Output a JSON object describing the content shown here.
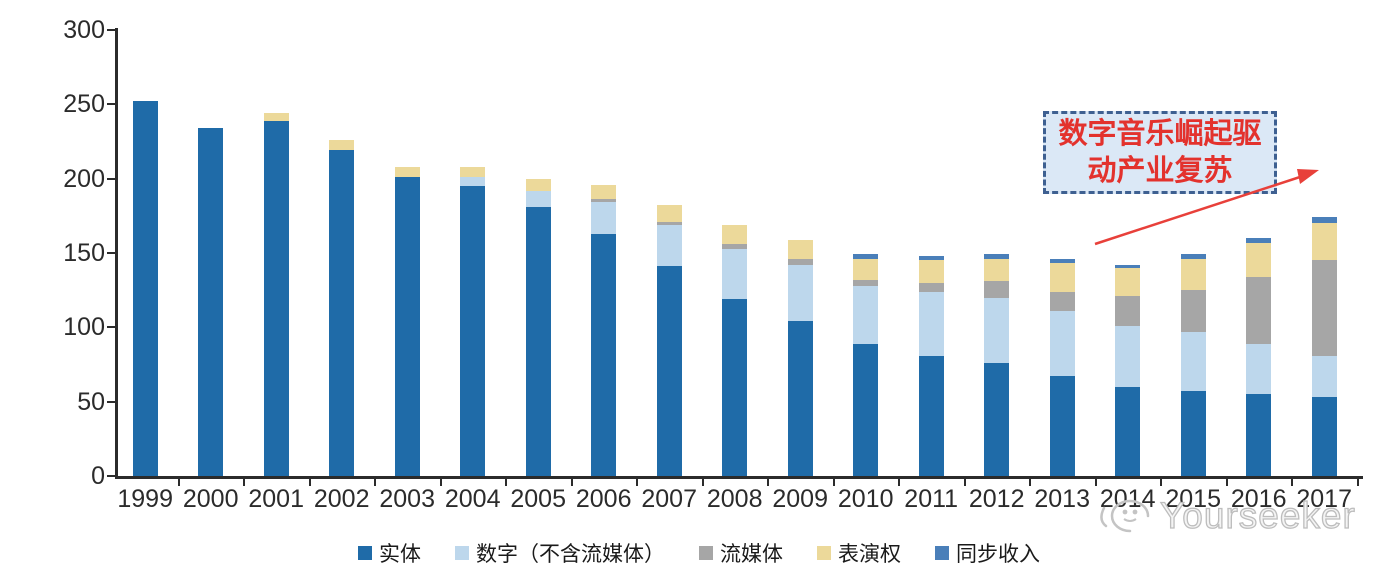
{
  "chart_data": {
    "type": "bar",
    "stacked": true,
    "title": "",
    "xlabel": "",
    "ylabel": "",
    "ylim": [
      0,
      300
    ],
    "yticks": [
      0,
      50,
      100,
      150,
      200,
      250,
      300
    ],
    "grid": false,
    "legend_position": "bottom",
    "categories": [
      "1999",
      "2000",
      "2001",
      "2002",
      "2003",
      "2004",
      "2005",
      "2006",
      "2007",
      "2008",
      "2009",
      "2010",
      "2011",
      "2012",
      "2013",
      "2014",
      "2015",
      "2016",
      "2017"
    ],
    "series": [
      {
        "key": "physical",
        "name": "实体",
        "color": "#1f6ba8",
        "values": [
          252,
          234,
          239,
          219,
          201,
          195,
          181,
          163,
          141,
          119,
          104,
          89,
          81,
          76,
          67,
          60,
          57,
          55,
          53
        ]
      },
      {
        "key": "digital-ex-streaming",
        "name": "数字（不含流媒体）",
        "color": "#bdd7ec",
        "values": [
          0,
          0,
          0,
          0,
          0,
          6,
          11,
          21,
          28,
          34,
          38,
          39,
          43,
          44,
          44,
          41,
          40,
          34,
          28
        ]
      },
      {
        "key": "streaming",
        "name": "流媒体",
        "color": "#a6a6a6",
        "values": [
          0,
          0,
          0,
          0,
          0,
          0,
          0,
          2,
          2,
          3,
          4,
          4,
          6,
          11,
          13,
          20,
          28,
          45,
          64
        ]
      },
      {
        "key": "performance-rights",
        "name": "表演权",
        "color": "#ecd99a",
        "values": [
          0,
          0,
          5,
          7,
          7,
          7,
          8,
          10,
          11,
          13,
          13,
          14,
          15,
          15,
          19,
          19,
          21,
          23,
          25
        ]
      },
      {
        "key": "sync",
        "name": "同步收入",
        "color": "#4a7fb9",
        "values": [
          0,
          0,
          0,
          0,
          0,
          0,
          0,
          0,
          0,
          0,
          0,
          3,
          3,
          3,
          3,
          2,
          3,
          3,
          4
        ]
      }
    ]
  },
  "annotation": {
    "line1": "数字音乐崛起驱",
    "line2": "动产业复苏",
    "box_fill": "#dbe8f6",
    "box_border": "#3e6091",
    "text_color": "#e3322d",
    "arrow_color": "#e8403a"
  },
  "watermark": {
    "text": "Yourseeker",
    "color": "#bdbdbd"
  },
  "axis_color": "#2b2b2b"
}
